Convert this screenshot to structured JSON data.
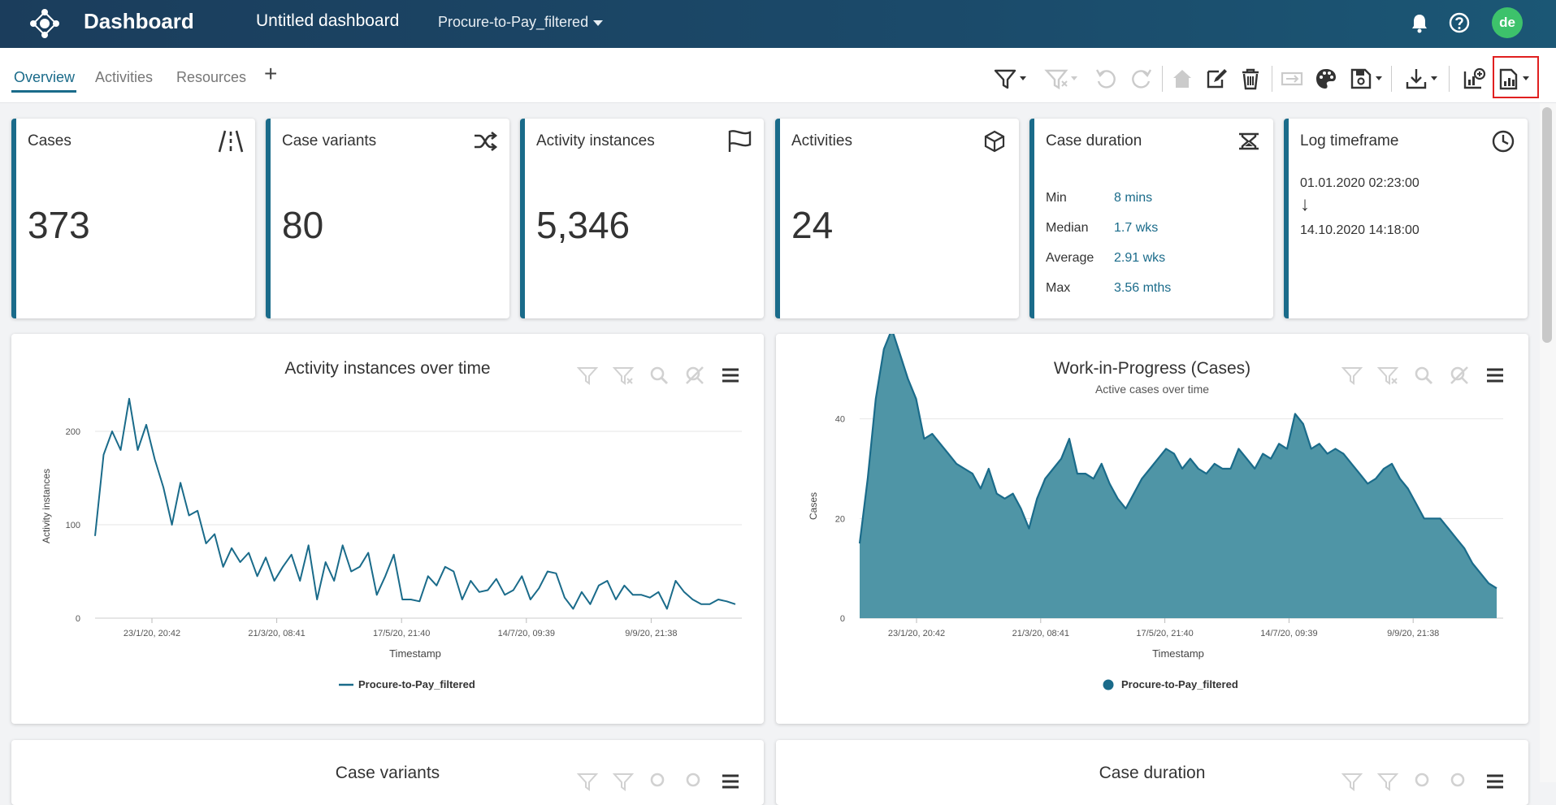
{
  "header": {
    "app_title": "Dashboard",
    "dashboard_title": "Untitled dashboard",
    "dataset": "Procure-to-Pay_filtered",
    "avatar": "de",
    "icons": [
      "bell-icon",
      "help-icon"
    ]
  },
  "tabs": {
    "items": [
      {
        "label": "Overview",
        "active": true
      },
      {
        "label": "Activities",
        "active": false
      },
      {
        "label": "Resources",
        "active": false
      }
    ],
    "add": "+"
  },
  "toolbar": {
    "icons": [
      "filter-icon",
      "clear-filter-icon",
      "undo-icon",
      "redo-icon",
      "home-icon",
      "edit-icon",
      "delete-icon",
      "swap-icon",
      "palette-icon",
      "save-icon",
      "download-icon",
      "add-chart-icon",
      "report-icon"
    ]
  },
  "kpis": {
    "cases": {
      "title": "Cases",
      "value": "373"
    },
    "variants": {
      "title": "Case variants",
      "value": "80"
    },
    "instances": {
      "title": "Activity instances",
      "value": "5,346"
    },
    "activities": {
      "title": "Activities",
      "value": "24"
    },
    "duration": {
      "title": "Case duration",
      "rows": [
        {
          "label": "Min",
          "value": "8 mins"
        },
        {
          "label": "Median",
          "value": "1.7 wks"
        },
        {
          "label": "Average",
          "value": "2.91 wks"
        },
        {
          "label": "Max",
          "value": "3.56 mths"
        }
      ]
    },
    "timeframe": {
      "title": "Log timeframe",
      "start": "01.01.2020 02:23:00",
      "arrow": "↓",
      "end": "14.10.2020 14:18:00"
    }
  },
  "panels": {
    "bottom_left_title": "Case variants",
    "bottom_right_title": "Case duration"
  },
  "colors": {
    "accent": "#1a6b8a",
    "area_fill": "#4f95a6",
    "header": "#1b4a6a"
  },
  "chart_data": [
    {
      "type": "line",
      "title": "Activity instances over time",
      "xlabel": "Timestamp",
      "ylabel": "Activity instances",
      "x_ticks": [
        "23/1/20, 20:42",
        "21/3/20, 08:41",
        "17/5/20, 21:40",
        "14/7/20, 09:39",
        "9/9/20, 21:38"
      ],
      "y_ticks": [
        0,
        100,
        200
      ],
      "ylim": [
        0,
        240
      ],
      "grid": true,
      "legend": "bottom",
      "series": [
        {
          "name": "Procure-to-Pay_filtered",
          "values": [
            88,
            175,
            200,
            180,
            235,
            180,
            207,
            170,
            140,
            100,
            145,
            110,
            115,
            80,
            90,
            55,
            75,
            60,
            70,
            45,
            65,
            40,
            55,
            68,
            40,
            78,
            20,
            60,
            40,
            78,
            50,
            55,
            70,
            25,
            45,
            68,
            20,
            20,
            18,
            45,
            35,
            55,
            50,
            20,
            40,
            28,
            30,
            42,
            25,
            30,
            45,
            20,
            32,
            50,
            48,
            22,
            10,
            28,
            15,
            35,
            40,
            20,
            35,
            25,
            25,
            22,
            28,
            10,
            40,
            28,
            20,
            15,
            15,
            20,
            18,
            15
          ]
        }
      ]
    },
    {
      "type": "area",
      "title": "Work-in-Progress (Cases)",
      "subtitle": "Active cases over time",
      "xlabel": "Timestamp",
      "ylabel": "Cases",
      "x_ticks": [
        "23/1/20, 20:42",
        "21/3/20, 08:41",
        "17/5/20, 21:40",
        "14/7/20, 09:39",
        "9/9/20, 21:38"
      ],
      "y_ticks": [
        0,
        20,
        40
      ],
      "ylim": [
        0,
        45
      ],
      "grid": true,
      "legend": "bottom",
      "series": [
        {
          "name": "Procure-to-Pay_filtered",
          "values": [
            15,
            28,
            44,
            54,
            58,
            53,
            48,
            44,
            36,
            37,
            35,
            33,
            31,
            30,
            29,
            26,
            30,
            25,
            24,
            25,
            22,
            18,
            24,
            28,
            30,
            32,
            36,
            29,
            29,
            28,
            31,
            27,
            24,
            22,
            25,
            28,
            30,
            32,
            34,
            33,
            30,
            32,
            30,
            29,
            31,
            30,
            30,
            34,
            32,
            30,
            33,
            32,
            35,
            34,
            41,
            39,
            34,
            35,
            33,
            34,
            33,
            31,
            29,
            27,
            28,
            30,
            31,
            28,
            26,
            23,
            20,
            20,
            20,
            18,
            16,
            14,
            11,
            9,
            7,
            6
          ]
        }
      ]
    }
  ]
}
